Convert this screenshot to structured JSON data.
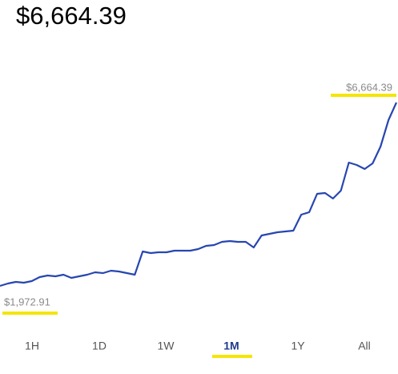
{
  "header": {
    "price": "$6,664.39"
  },
  "chart_data": {
    "type": "line",
    "color": "#2746b0",
    "values": [
      1973,
      2034,
      2075,
      2055,
      2096,
      2198,
      2239,
      2219,
      2260,
      2178,
      2219,
      2260,
      2321,
      2301,
      2362,
      2342,
      2301,
      2260,
      2854,
      2813,
      2834,
      2834,
      2875,
      2875,
      2875,
      2915,
      2997,
      3018,
      3100,
      3120,
      3100,
      3100,
      2956,
      3264,
      3305,
      3346,
      3366,
      3387,
      3797,
      3858,
      4329,
      4350,
      4207,
      4411,
      5128,
      5067,
      4964,
      5108,
      5538,
      6214,
      6664.39
    ],
    "high": {
      "value": 6664.39,
      "label": "$6,664.39"
    },
    "low": {
      "value": 1972.91,
      "label": "$1,972.91"
    }
  },
  "tabs": {
    "items": [
      "1H",
      "1D",
      "1W",
      "1M",
      "1Y",
      "All"
    ],
    "selected": 3
  }
}
